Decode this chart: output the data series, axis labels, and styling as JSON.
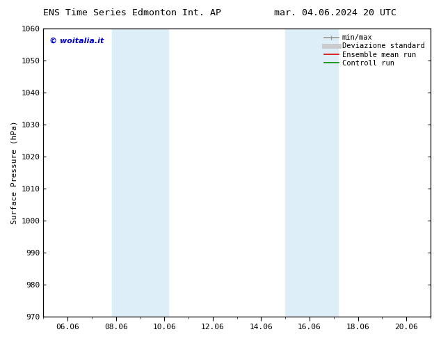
{
  "title_left": "ENS Time Series Edmonton Int. AP",
  "title_right": "mar. 04.06.2024 20 UTC",
  "ylabel": "Surface Pressure (hPa)",
  "ylim": [
    970,
    1060
  ],
  "yticks": [
    970,
    980,
    990,
    1000,
    1010,
    1020,
    1030,
    1040,
    1050,
    1060
  ],
  "xtick_labels": [
    "06.06",
    "08.06",
    "10.06",
    "12.06",
    "14.06",
    "16.06",
    "18.06",
    "20.06"
  ],
  "xtick_days": [
    6,
    8,
    10,
    12,
    14,
    16,
    18,
    20
  ],
  "shaded_bands": [
    {
      "day_start": 7.833,
      "day_end": 9.0,
      "color": "#ddeef8"
    },
    {
      "day_start": 9.0,
      "day_end": 10.167,
      "color": "#ddeef8"
    },
    {
      "day_start": 15.0,
      "day_end": 16.0,
      "color": "#ddeef8"
    },
    {
      "day_start": 16.0,
      "day_end": 17.167,
      "color": "#ddeef8"
    }
  ],
  "legend_entries": [
    {
      "label": "min/max",
      "color": "#999999",
      "lw": 1.2,
      "style": "line_with_caps"
    },
    {
      "label": "Deviazione standard",
      "color": "#cccccc",
      "lw": 5,
      "style": "line"
    },
    {
      "label": "Ensemble mean run",
      "color": "#dd0000",
      "lw": 1.2,
      "style": "line"
    },
    {
      "label": "Controll run",
      "color": "#008800",
      "lw": 1.2,
      "style": "line"
    }
  ],
  "watermark": "© woitalia.it",
  "watermark_color": "#0000cc",
  "bg_color": "#ffffff",
  "plot_bg_color": "#ffffff",
  "title_fontsize": 9.5,
  "axis_label_fontsize": 8,
  "tick_fontsize": 8,
  "legend_fontsize": 7.5,
  "xlim_day_start": 5.0,
  "xlim_day_end": 21.0
}
